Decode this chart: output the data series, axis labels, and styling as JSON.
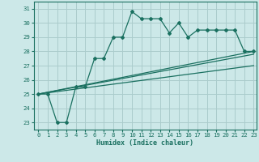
{
  "xlabel": "Humidex (Indice chaleur)",
  "bg_color": "#cce8e8",
  "grid_color": "#aacccc",
  "line_color": "#1a7060",
  "xlim": [
    -0.5,
    23.3
  ],
  "ylim": [
    22.5,
    31.5
  ],
  "xticks": [
    0,
    1,
    2,
    3,
    4,
    5,
    6,
    7,
    8,
    9,
    10,
    11,
    12,
    13,
    14,
    15,
    16,
    17,
    18,
    19,
    20,
    21,
    22,
    23
  ],
  "yticks": [
    23,
    24,
    25,
    26,
    27,
    28,
    29,
    30,
    31
  ],
  "line1_x": [
    0,
    1,
    2,
    3,
    4,
    5,
    6,
    7,
    8,
    9,
    10,
    11,
    12,
    13,
    14,
    15,
    16,
    17,
    18,
    19,
    20,
    21,
    22,
    23
  ],
  "line1_y": [
    25,
    25,
    23,
    23,
    25.5,
    25.5,
    27.5,
    27.5,
    29,
    29,
    30.8,
    30.3,
    30.3,
    30.3,
    29.3,
    30,
    29,
    29.5,
    29.5,
    29.5,
    29.5,
    29.5,
    28,
    28
  ],
  "line2_x": [
    0,
    23
  ],
  "line2_y": [
    25,
    28
  ],
  "line3_x": [
    0,
    23
  ],
  "line3_y": [
    25,
    27.8
  ],
  "line4_x": [
    0,
    23
  ],
  "line4_y": [
    25,
    27.0
  ]
}
